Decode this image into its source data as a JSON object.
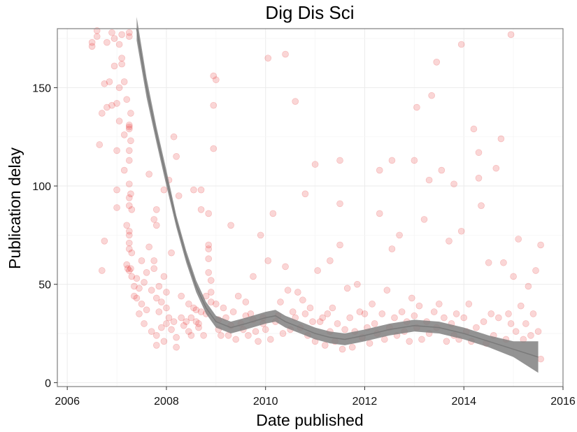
{
  "chart_data": {
    "type": "scatter",
    "title": "Dig Dis Sci",
    "xlabel": "Date published",
    "ylabel": "Publication delay",
    "xlim": [
      2005.8,
      2016.0
    ],
    "ylim": [
      -2,
      180
    ],
    "x_ticks": [
      2006,
      2008,
      2010,
      2012,
      2014,
      2016
    ],
    "x_tick_labels": [
      "2006",
      "2008",
      "2010",
      "2012",
      "2014",
      "2016"
    ],
    "y_ticks": [
      0,
      50,
      100,
      150
    ],
    "y_tick_labels": [
      "0",
      "50",
      "100",
      "150"
    ],
    "grid": true,
    "legend": "none",
    "point_color": "#e41a1c",
    "point_opacity": 0.12,
    "smooth_color": "#808080",
    "points": [
      [
        2006.5,
        171
      ],
      [
        2006.5,
        173
      ],
      [
        2006.6,
        176
      ],
      [
        2006.6,
        179
      ],
      [
        2006.65,
        121
      ],
      [
        2006.7,
        57
      ],
      [
        2006.7,
        137
      ],
      [
        2006.75,
        72
      ],
      [
        2006.75,
        152
      ],
      [
        2006.8,
        140
      ],
      [
        2006.8,
        173
      ],
      [
        2006.85,
        153
      ],
      [
        2006.9,
        141
      ],
      [
        2006.9,
        178
      ],
      [
        2006.95,
        161
      ],
      [
        2006.95,
        175
      ],
      [
        2007.0,
        142
      ],
      [
        2007.0,
        98
      ],
      [
        2007.0,
        89
      ],
      [
        2007.0,
        118
      ],
      [
        2007.05,
        133
      ],
      [
        2007.05,
        150
      ],
      [
        2007.05,
        172
      ],
      [
        2007.1,
        162
      ],
      [
        2007.1,
        177
      ],
      [
        2007.1,
        165
      ],
      [
        2007.15,
        153
      ],
      [
        2007.15,
        108
      ],
      [
        2007.15,
        126
      ],
      [
        2007.2,
        144
      ],
      [
        2007.2,
        80
      ],
      [
        2007.2,
        60
      ],
      [
        2007.22,
        58
      ],
      [
        2007.25,
        178
      ],
      [
        2007.25,
        176
      ],
      [
        2007.25,
        131
      ],
      [
        2007.25,
        130
      ],
      [
        2007.25,
        129
      ],
      [
        2007.25,
        118
      ],
      [
        2007.25,
        113
      ],
      [
        2007.25,
        101
      ],
      [
        2007.25,
        94
      ],
      [
        2007.25,
        90
      ],
      [
        2007.25,
        77
      ],
      [
        2007.25,
        75
      ],
      [
        2007.25,
        71
      ],
      [
        2007.25,
        68
      ],
      [
        2007.25,
        57
      ],
      [
        2007.28,
        137
      ],
      [
        2007.28,
        123
      ],
      [
        2007.28,
        96
      ],
      [
        2007.28,
        58
      ],
      [
        2007.3,
        88
      ],
      [
        2007.3,
        66
      ],
      [
        2007.3,
        54
      ],
      [
        2007.35,
        49
      ],
      [
        2007.35,
        44
      ],
      [
        2007.4,
        53
      ],
      [
        2007.4,
        43
      ],
      [
        2007.45,
        48
      ],
      [
        2007.45,
        35
      ],
      [
        2007.5,
        62
      ],
      [
        2007.5,
        40
      ],
      [
        2007.55,
        30
      ],
      [
        2007.55,
        51
      ],
      [
        2007.6,
        56
      ],
      [
        2007.6,
        37
      ],
      [
        2007.65,
        69
      ],
      [
        2007.65,
        106
      ],
      [
        2007.7,
        47
      ],
      [
        2007.7,
        26
      ],
      [
        2007.75,
        58
      ],
      [
        2007.75,
        83
      ],
      [
        2007.75,
        62
      ],
      [
        2007.8,
        43
      ],
      [
        2007.8,
        24
      ],
      [
        2007.8,
        19
      ],
      [
        2007.8,
        88
      ],
      [
        2007.8,
        80
      ],
      [
        2007.85,
        49
      ],
      [
        2007.85,
        36
      ],
      [
        2007.9,
        41
      ],
      [
        2007.9,
        28
      ],
      [
        2007.95,
        54
      ],
      [
        2007.95,
        21
      ],
      [
        2007.95,
        98
      ],
      [
        2008.0,
        46
      ],
      [
        2008.0,
        38
      ],
      [
        2008.0,
        30
      ],
      [
        2008.05,
        33
      ],
      [
        2008.05,
        103
      ],
      [
        2008.1,
        66
      ],
      [
        2008.1,
        27
      ],
      [
        2008.15,
        125
      ],
      [
        2008.15,
        31
      ],
      [
        2008.2,
        115
      ],
      [
        2008.2,
        23
      ],
      [
        2008.2,
        18
      ],
      [
        2008.25,
        95
      ],
      [
        2008.3,
        44
      ],
      [
        2008.3,
        33
      ],
      [
        2008.35,
        29
      ],
      [
        2008.4,
        31
      ],
      [
        2008.45,
        40
      ],
      [
        2008.45,
        26
      ],
      [
        2008.5,
        33
      ],
      [
        2008.5,
        24
      ],
      [
        2008.55,
        98
      ],
      [
        2008.55,
        38
      ],
      [
        2008.6,
        37
      ],
      [
        2008.6,
        31
      ],
      [
        2008.65,
        30
      ],
      [
        2008.65,
        28
      ],
      [
        2008.7,
        98
      ],
      [
        2008.7,
        88
      ],
      [
        2008.7,
        36
      ],
      [
        2008.75,
        24
      ],
      [
        2008.8,
        44
      ],
      [
        2008.8,
        35
      ],
      [
        2008.85,
        86
      ],
      [
        2008.85,
        70
      ],
      [
        2008.85,
        68
      ],
      [
        2008.85,
        63
      ],
      [
        2008.85,
        56
      ],
      [
        2008.9,
        52
      ],
      [
        2008.9,
        46
      ],
      [
        2008.9,
        41
      ],
      [
        2008.95,
        156
      ],
      [
        2008.95,
        141
      ],
      [
        2008.95,
        119
      ],
      [
        2009.0,
        154
      ],
      [
        2009.0,
        40
      ],
      [
        2009.05,
        32
      ],
      [
        2009.05,
        27
      ],
      [
        2009.1,
        24
      ],
      [
        2009.15,
        38
      ],
      [
        2009.2,
        33
      ],
      [
        2009.25,
        24
      ],
      [
        2009.3,
        80
      ],
      [
        2009.3,
        29
      ],
      [
        2009.35,
        36
      ],
      [
        2009.4,
        22
      ],
      [
        2009.45,
        44
      ],
      [
        2009.5,
        30
      ],
      [
        2009.55,
        27
      ],
      [
        2009.6,
        41
      ],
      [
        2009.6,
        34
      ],
      [
        2009.65,
        24
      ],
      [
        2009.7,
        35
      ],
      [
        2009.75,
        32
      ],
      [
        2009.75,
        54
      ],
      [
        2009.8,
        26
      ],
      [
        2009.85,
        21
      ],
      [
        2009.9,
        75
      ],
      [
        2009.95,
        33
      ],
      [
        2009.95,
        30
      ],
      [
        2010.0,
        27
      ],
      [
        2010.05,
        165
      ],
      [
        2010.05,
        62
      ],
      [
        2010.1,
        22
      ],
      [
        2010.15,
        86
      ],
      [
        2010.2,
        31
      ],
      [
        2010.25,
        34
      ],
      [
        2010.3,
        41
      ],
      [
        2010.35,
        25
      ],
      [
        2010.4,
        167
      ],
      [
        2010.4,
        59
      ],
      [
        2010.45,
        47
      ],
      [
        2010.5,
        27
      ],
      [
        2010.55,
        36
      ],
      [
        2010.6,
        143
      ],
      [
        2010.6,
        33
      ],
      [
        2010.65,
        46
      ],
      [
        2010.7,
        28
      ],
      [
        2010.75,
        42
      ],
      [
        2010.8,
        35
      ],
      [
        2010.8,
        96
      ],
      [
        2010.85,
        24
      ],
      [
        2010.9,
        38
      ],
      [
        2010.95,
        31
      ],
      [
        2011.0,
        111
      ],
      [
        2011.0,
        21
      ],
      [
        2011.05,
        57
      ],
      [
        2011.1,
        31
      ],
      [
        2011.15,
        33
      ],
      [
        2011.2,
        19
      ],
      [
        2011.25,
        35
      ],
      [
        2011.3,
        62
      ],
      [
        2011.3,
        26
      ],
      [
        2011.35,
        38
      ],
      [
        2011.4,
        21
      ],
      [
        2011.45,
        30
      ],
      [
        2011.5,
        113
      ],
      [
        2011.5,
        91
      ],
      [
        2011.5,
        70
      ],
      [
        2011.55,
        17
      ],
      [
        2011.6,
        27
      ],
      [
        2011.65,
        48
      ],
      [
        2011.7,
        33
      ],
      [
        2011.75,
        18
      ],
      [
        2011.8,
        26
      ],
      [
        2011.85,
        50
      ],
      [
        2011.9,
        36
      ],
      [
        2011.95,
        23
      ],
      [
        2012.0,
        35
      ],
      [
        2012.05,
        28
      ],
      [
        2012.1,
        20
      ],
      [
        2012.15,
        40
      ],
      [
        2012.2,
        30
      ],
      [
        2012.25,
        25
      ],
      [
        2012.3,
        108
      ],
      [
        2012.3,
        86
      ],
      [
        2012.35,
        35
      ],
      [
        2012.4,
        22
      ],
      [
        2012.45,
        47
      ],
      [
        2012.5,
        28
      ],
      [
        2012.55,
        113
      ],
      [
        2012.55,
        68
      ],
      [
        2012.6,
        33
      ],
      [
        2012.65,
        24
      ],
      [
        2012.7,
        75
      ],
      [
        2012.75,
        36
      ],
      [
        2012.8,
        26
      ],
      [
        2012.85,
        31
      ],
      [
        2012.9,
        21
      ],
      [
        2012.95,
        43
      ],
      [
        2013.0,
        113
      ],
      [
        2013.0,
        34
      ],
      [
        2013.05,
        140
      ],
      [
        2013.05,
        28
      ],
      [
        2013.1,
        39
      ],
      [
        2013.15,
        22
      ],
      [
        2013.2,
        83
      ],
      [
        2013.25,
        31
      ],
      [
        2013.3,
        103
      ],
      [
        2013.3,
        25
      ],
      [
        2013.35,
        146
      ],
      [
        2013.4,
        36
      ],
      [
        2013.45,
        163
      ],
      [
        2013.45,
        28
      ],
      [
        2013.5,
        40
      ],
      [
        2013.55,
        108
      ],
      [
        2013.6,
        33
      ],
      [
        2013.65,
        21
      ],
      [
        2013.7,
        72
      ],
      [
        2013.75,
        30
      ],
      [
        2013.8,
        101
      ],
      [
        2013.8,
        24
      ],
      [
        2013.85,
        35
      ],
      [
        2013.9,
        22
      ],
      [
        2013.95,
        172
      ],
      [
        2013.95,
        77
      ],
      [
        2014.0,
        33
      ],
      [
        2014.05,
        26
      ],
      [
        2014.1,
        40
      ],
      [
        2014.15,
        21
      ],
      [
        2014.2,
        129
      ],
      [
        2014.25,
        28
      ],
      [
        2014.3,
        117
      ],
      [
        2014.3,
        104
      ],
      [
        2014.35,
        90
      ],
      [
        2014.4,
        31
      ],
      [
        2014.45,
        20
      ],
      [
        2014.5,
        61
      ],
      [
        2014.55,
        35
      ],
      [
        2014.6,
        24
      ],
      [
        2014.65,
        109
      ],
      [
        2014.7,
        33
      ],
      [
        2014.75,
        124
      ],
      [
        2014.8,
        61
      ],
      [
        2014.85,
        22
      ],
      [
        2014.9,
        35
      ],
      [
        2014.95,
        177
      ],
      [
        2014.95,
        30
      ],
      [
        2015.0,
        54
      ],
      [
        2015.05,
        26
      ],
      [
        2015.1,
        73
      ],
      [
        2015.15,
        39
      ],
      [
        2015.2,
        22
      ],
      [
        2015.25,
        30
      ],
      [
        2015.3,
        49
      ],
      [
        2015.35,
        24
      ],
      [
        2015.4,
        35
      ],
      [
        2015.45,
        57
      ],
      [
        2015.5,
        26
      ],
      [
        2015.55,
        70
      ],
      [
        2015.55,
        12
      ]
    ],
    "smooth_line": [
      [
        2007.4,
        180
      ],
      [
        2007.6,
        150
      ],
      [
        2007.8,
        126
      ],
      [
        2008.0,
        104
      ],
      [
        2008.2,
        82
      ],
      [
        2008.4,
        64
      ],
      [
        2008.6,
        49
      ],
      [
        2008.8,
        38
      ],
      [
        2009.0,
        31
      ],
      [
        2009.3,
        28
      ],
      [
        2009.6,
        30
      ],
      [
        2010.0,
        33
      ],
      [
        2010.2,
        34
      ],
      [
        2010.4,
        31
      ],
      [
        2010.7,
        28
      ],
      [
        2011.0,
        25
      ],
      [
        2011.3,
        23
      ],
      [
        2011.6,
        22
      ],
      [
        2012.0,
        24
      ],
      [
        2012.5,
        27
      ],
      [
        2013.0,
        29
      ],
      [
        2013.5,
        28
      ],
      [
        2014.0,
        25
      ],
      [
        2014.5,
        21
      ],
      [
        2015.0,
        17
      ],
      [
        2015.5,
        13
      ]
    ],
    "smooth_band_halfwidth": [
      6,
      5,
      4,
      4,
      3,
      3,
      3,
      3,
      3,
      3,
      3,
      3,
      3,
      3,
      3,
      3,
      3,
      3,
      3,
      3,
      3,
      3,
      3,
      3,
      4,
      8
    ]
  }
}
